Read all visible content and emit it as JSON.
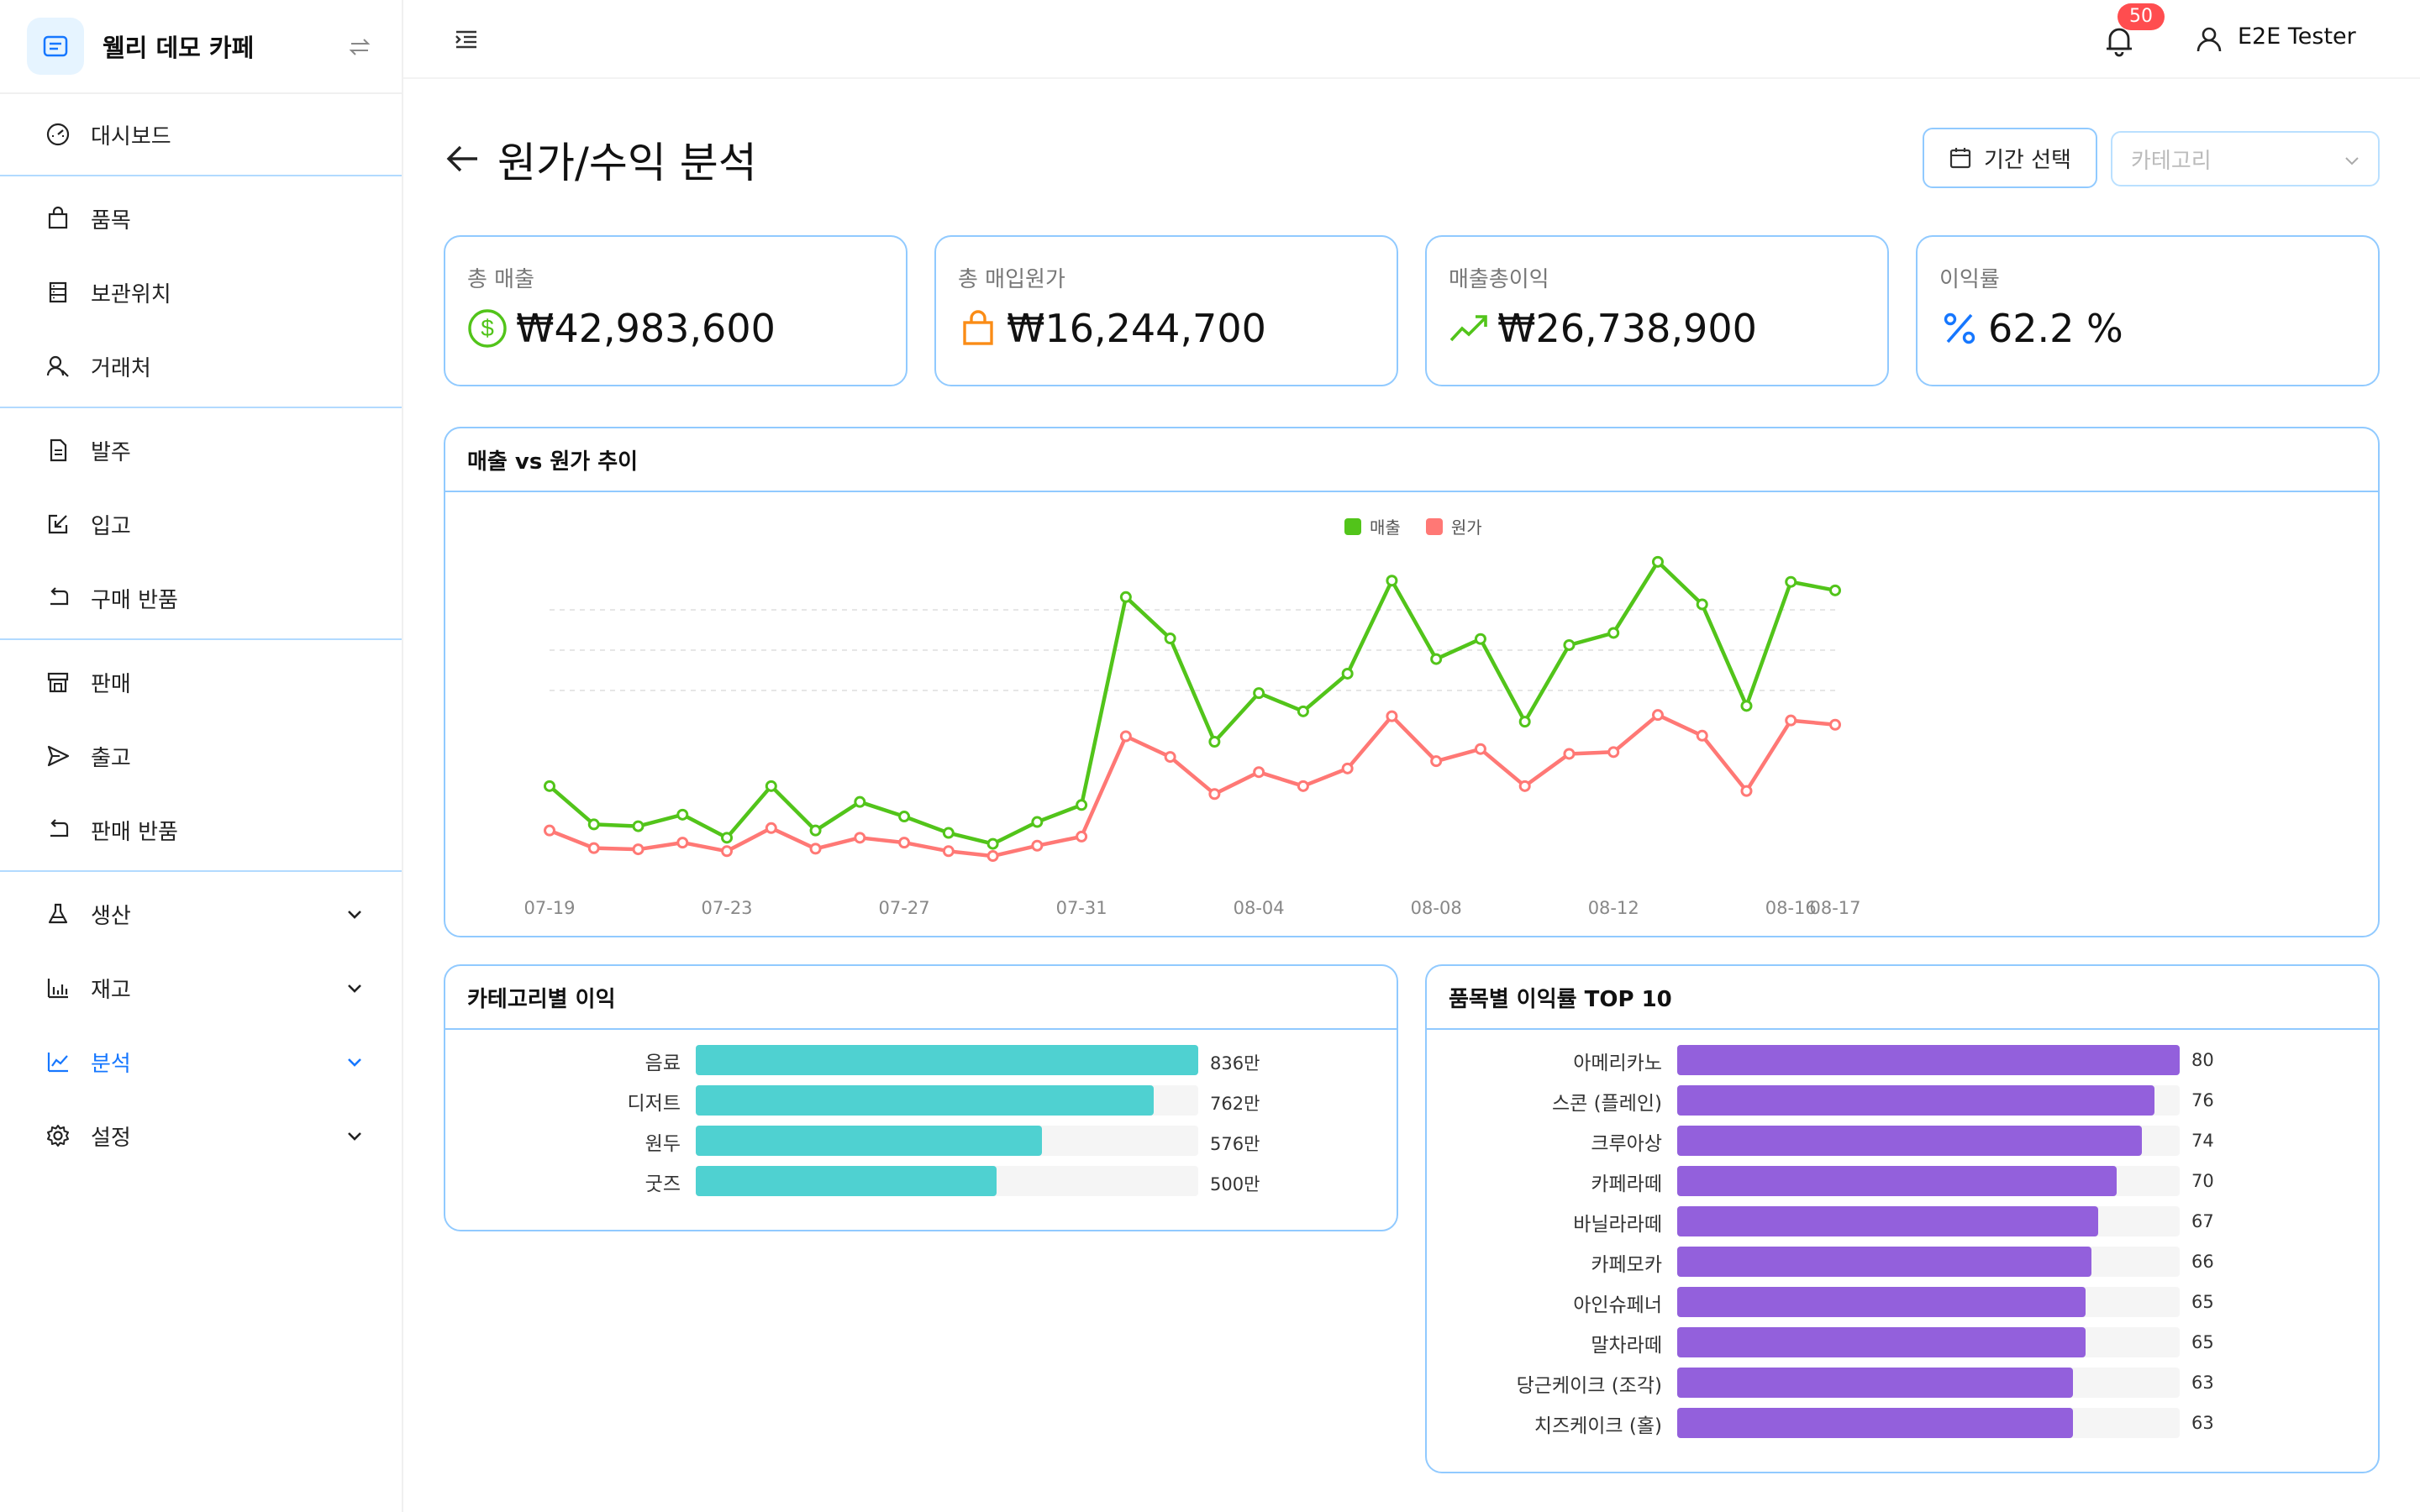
{
  "brand": {
    "name": "웰리 데모 카페"
  },
  "sidebar": {
    "items": [
      {
        "label": "대시보드"
      },
      {
        "label": "품목"
      },
      {
        "label": "보관위치"
      },
      {
        "label": "거래처"
      },
      {
        "label": "발주"
      },
      {
        "label": "입고"
      },
      {
        "label": "구매 반품"
      },
      {
        "label": "판매"
      },
      {
        "label": "출고"
      },
      {
        "label": "판매 반품"
      },
      {
        "label": "생산"
      },
      {
        "label": "재고"
      },
      {
        "label": "분석"
      },
      {
        "label": "설정"
      }
    ]
  },
  "header": {
    "notification_count": "50",
    "user_name": "E2E Tester"
  },
  "page": {
    "title": "원가/수익 분석",
    "period_button": "기간 선택",
    "category_placeholder": "카테고리"
  },
  "stats": [
    {
      "label": "총 매출",
      "value": "₩42,983,600",
      "icon": "dollar-circle-icon",
      "color": "#52c41a"
    },
    {
      "label": "총 매입원가",
      "value": "₩16,244,700",
      "icon": "shopping-bag-icon",
      "color": "#fa8c16"
    },
    {
      "label": "매출총이익",
      "value": "₩26,738,900",
      "icon": "trend-up-icon",
      "color": "#52c41a"
    },
    {
      "label": "이익률",
      "value": "62.2 %",
      "icon": "percent-icon",
      "color": "#1677ff"
    }
  ],
  "colors": {
    "revenue": "#52c41a",
    "cost": "#ff7875",
    "category_bar": "#4fd1d1",
    "product_bar": "#9360dc",
    "accent": "#1677ff"
  },
  "chart_data": [
    {
      "type": "line",
      "title": "매출 vs 원가 추이",
      "x": [
        "07-19",
        "07-20",
        "07-21",
        "07-22",
        "07-23",
        "07-24",
        "07-25",
        "07-26",
        "07-27",
        "07-28",
        "07-29",
        "07-30",
        "07-31",
        "08-01",
        "08-02",
        "08-03",
        "08-04",
        "08-05",
        "08-06",
        "08-07",
        "08-08",
        "08-09",
        "08-10",
        "08-11",
        "08-12",
        "08-13",
        "08-14",
        "08-15",
        "08-16",
        "08-17"
      ],
      "x_tick_labels": [
        "07-19",
        "07-23",
        "07-27",
        "07-31",
        "08-04",
        "08-08",
        "08-12",
        "08-16",
        "08-17"
      ],
      "series": [
        {
          "name": "매출",
          "values": [
            1550000,
            920000,
            890000,
            1080000,
            700000,
            1550000,
            820000,
            1290000,
            1050000,
            780000,
            600000,
            960000,
            1240000,
            4660000,
            3980000,
            2280000,
            3080000,
            2780000,
            3400000,
            4930000,
            3640000,
            3970000,
            2610000,
            3870000,
            4070000,
            5240000,
            4540000,
            2870000,
            4910000,
            4770000
          ]
        },
        {
          "name": "원가",
          "values": [
            820000,
            530000,
            510000,
            620000,
            480000,
            860000,
            520000,
            700000,
            620000,
            480000,
            400000,
            570000,
            720000,
            2370000,
            2030000,
            1420000,
            1780000,
            1550000,
            1840000,
            2700000,
            1960000,
            2160000,
            1550000,
            2080000,
            2110000,
            2720000,
            2380000,
            1470000,
            2630000,
            2560000
          ]
        }
      ],
      "legend": "top-center",
      "grid": true
    },
    {
      "type": "bar",
      "orientation": "horizontal",
      "title": "카테고리별 이익",
      "categories": [
        "음료",
        "디저트",
        "원두",
        "굿즈"
      ],
      "values": [
        836,
        762,
        576,
        500
      ],
      "value_labels": [
        "836만",
        "762만",
        "576만",
        "500만"
      ],
      "xlim": [
        0,
        836
      ]
    },
    {
      "type": "bar",
      "orientation": "horizontal",
      "title": "품목별 이익률 TOP 10",
      "categories": [
        "아메리카노",
        "스콘 (플레인)",
        "크루아상",
        "카페라떼",
        "바닐라라떼",
        "카페모카",
        "아인슈페너",
        "말차라떼",
        "당근케이크 (조각)",
        "치즈케이크 (홀)"
      ],
      "values": [
        80,
        76,
        74,
        70,
        67,
        66,
        65,
        65,
        63,
        63
      ],
      "value_labels": [
        "80",
        "76",
        "74",
        "70",
        "67",
        "66",
        "65",
        "65",
        "63",
        "63"
      ],
      "xlim": [
        0,
        80
      ]
    }
  ]
}
